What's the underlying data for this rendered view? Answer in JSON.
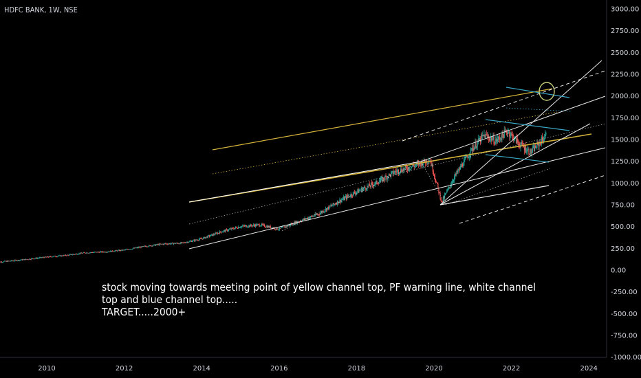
{
  "chart_title": "HDFC BANK, 1W, NSE",
  "annotation_lines": [
    "stock moving towards meeting point of yellow channel top, PF warning line, white channel",
    "top and blue channel top.....",
    "TARGET.....2000+"
  ],
  "chart_data": {
    "type": "line",
    "style": "candlestick",
    "y_axis": {
      "ticks": [
        "3000.00",
        "2750.00",
        "2500.00",
        "2250.00",
        "2000.00",
        "1750.00",
        "1500.00",
        "1250.00",
        "1000.00",
        "750.00",
        "500.00",
        "250.00",
        "0.00",
        "-250.00",
        "-500.00",
        "-750.00",
        "-1000.00"
      ],
      "range": [
        -1000,
        3000
      ],
      "position": "right"
    },
    "x_axis": {
      "ticks": [
        "2010",
        "2012",
        "2014",
        "2016",
        "2018",
        "2020",
        "2022",
        "2024"
      ]
    },
    "series": [
      {
        "x": [
          2008.7,
          2009.3,
          2010.0,
          2010.5,
          2011.0,
          2011.5,
          2012.0,
          2012.5,
          2013.0,
          2013.5,
          2014.0,
          2014.5,
          2015.0,
          2015.5,
          2016.0,
          2016.5,
          2017.0,
          2017.5,
          2018.0,
          2018.5,
          2019.0,
          2019.5,
          2019.9,
          2020.2,
          2020.5,
          2021.0,
          2021.3,
          2021.6,
          2021.9,
          2022.2,
          2022.5,
          2022.9
        ],
        "y": [
          90,
          115,
          150,
          170,
          200,
          210,
          230,
          270,
          300,
          310,
          360,
          440,
          500,
          520,
          470,
          560,
          640,
          780,
          900,
          1000,
          1130,
          1200,
          1270,
          780,
          1050,
          1400,
          1550,
          1480,
          1600,
          1450,
          1350,
          1550
        ]
      }
    ],
    "colors": {
      "up": "#26a69a",
      "down": "#ef5350",
      "yellow_channel": "#d4b33a",
      "white_channel": "#e8e8e8",
      "blue_channel": "#3aa6c4",
      "marker_circle": "#c8d07a"
    }
  }
}
